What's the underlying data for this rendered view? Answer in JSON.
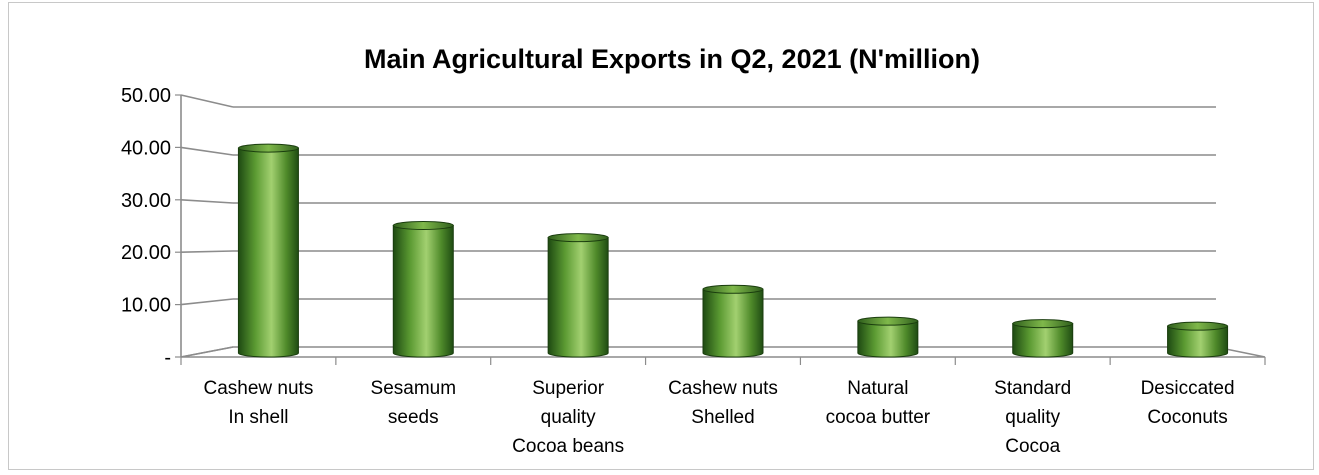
{
  "chart_data": {
    "type": "bar",
    "title": "Main Agricultural Exports in Q2, 2021 (N'million)",
    "xlabel": "",
    "ylabel": "",
    "ylim": [
      0,
      50
    ],
    "yticks": [
      0,
      10,
      20,
      30,
      40,
      50
    ],
    "ytick_labels": [
      "-",
      "10.00",
      "20.00",
      "30.00",
      "40.00",
      "50.00"
    ],
    "categories": [
      [
        "Cashew nuts",
        "In shell"
      ],
      [
        "Sesamum",
        "seeds"
      ],
      [
        "Superior",
        "quality",
        "Cocoa beans"
      ],
      [
        "Cashew nuts",
        "Shelled"
      ],
      [
        "Natural",
        "cocoa butter"
      ],
      [
        "Standard",
        "quality",
        "Cocoa"
      ],
      [
        "Desiccated",
        "Coconuts"
      ]
    ],
    "values": [
      40.5,
      25.2,
      22.8,
      12.6,
      6.3,
      5.8,
      5.3
    ],
    "grid": true,
    "legend": "none",
    "bar_colors": {
      "dark": "#1e4a12",
      "mid": "#4f8a2a",
      "light": "#9ccc6a",
      "top": "#6ea83c"
    }
  }
}
